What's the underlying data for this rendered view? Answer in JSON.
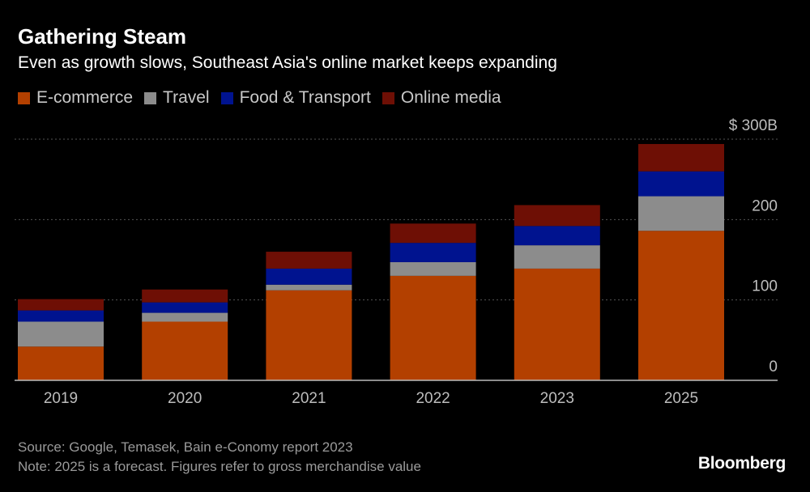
{
  "chart_data": {
    "type": "bar",
    "stacked": true,
    "title": "Gathering Steam",
    "subtitle": "Even as growth slows, Southeast Asia's online market keeps expanding",
    "categories": [
      "2019",
      "2020",
      "2021",
      "2022",
      "2023",
      "2025"
    ],
    "series": [
      {
        "name": "E-commerce",
        "color": "#b34000",
        "values": [
          42,
          73,
          112,
          130,
          139,
          186
        ]
      },
      {
        "name": "Travel",
        "color": "#8c8c8c",
        "values": [
          31,
          11,
          7,
          17,
          29,
          43
        ]
      },
      {
        "name": "Food & Transport",
        "color": "#00138f",
        "values": [
          14,
          13,
          20,
          24,
          24,
          31
        ]
      },
      {
        "name": "Online media",
        "color": "#6e0f05",
        "values": [
          14,
          16,
          21,
          24,
          26,
          34
        ]
      }
    ],
    "ylim": [
      0,
      300
    ],
    "yticks": [
      {
        "value": 0,
        "label": "0"
      },
      {
        "value": 100,
        "label": "100"
      },
      {
        "value": 200,
        "label": "200"
      },
      {
        "value": 300,
        "label": "$ 300B"
      }
    ],
    "xlabel": "",
    "ylabel": "",
    "grid": true,
    "legend": "top-left"
  },
  "footer": {
    "source": "Source: Google, Temasek, Bain e-Conomy report 2023",
    "note": "Note: 2025 is a forecast. Figures refer to gross merchandise value",
    "brand": "Bloomberg"
  },
  "colors": {
    "background": "#000000",
    "gridline": "#555555",
    "axis": "#bbbbbb",
    "tick_text": "#bdbdbd"
  }
}
